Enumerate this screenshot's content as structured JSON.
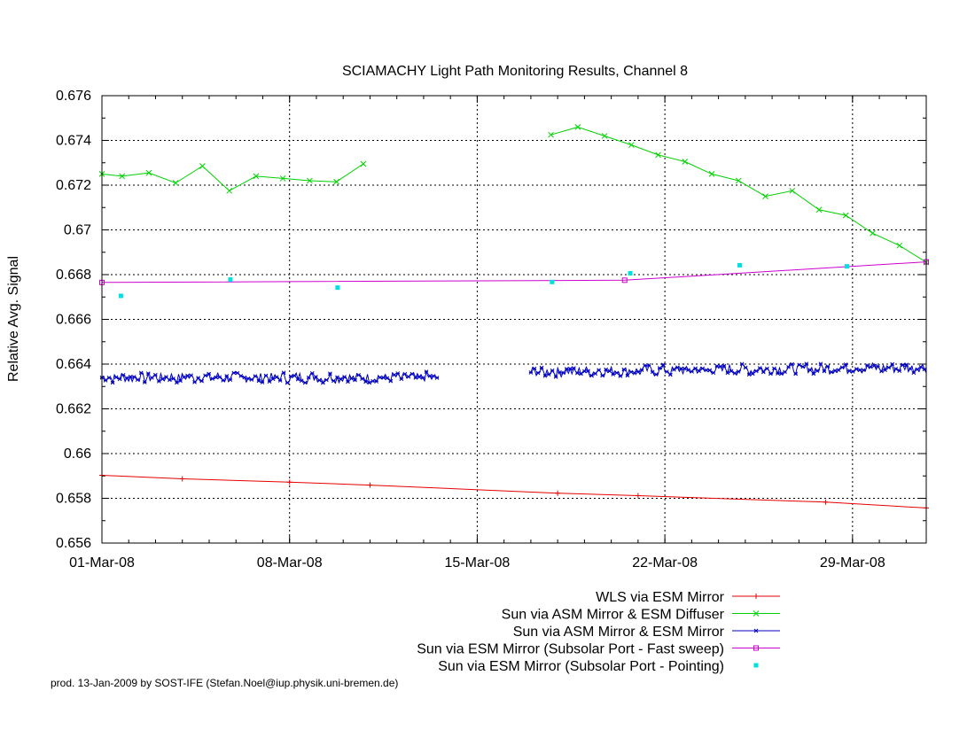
{
  "chart_data": {
    "type": "line",
    "title": "SCIAMACHY Light Path Monitoring Results, Channel 8",
    "ylabel": "Relative Avg. Signal",
    "xlabel": "",
    "xlim": [
      "2008-03-01",
      "2008-03-31T18:00"
    ],
    "ylim": [
      0.656,
      0.676
    ],
    "grid": true,
    "legend_position": "bottom-center",
    "x_ticks": [
      "01-Mar-08",
      "08-Mar-08",
      "15-Mar-08",
      "22-Mar-08",
      "29-Mar-08"
    ],
    "y_ticks": [
      "0.656",
      "0.658",
      "0.66",
      "0.662",
      "0.664",
      "0.666",
      "0.668",
      "0.67",
      "0.672",
      "0.674",
      "0.676"
    ],
    "series": [
      {
        "name": "WLS via ESM Mirror",
        "color": "#e60000",
        "marker": "plus",
        "line": true,
        "points": [
          [
            "2008-03-01",
            0.65903
          ],
          [
            "2008-03-04",
            0.65887
          ],
          [
            "2008-03-08",
            0.65872
          ],
          [
            "2008-03-11",
            0.65859
          ],
          [
            "2008-03-18",
            0.65823
          ],
          [
            "2008-03-21",
            0.65812
          ],
          [
            "2008-03-28",
            0.65783
          ],
          [
            "2008-03-31T18:00",
            0.65757
          ]
        ]
      },
      {
        "name": "Sun via ASM Mirror & ESM Diffuser",
        "color": "#00d200",
        "marker": "x",
        "line": true,
        "points": [
          [
            "2008-03-01",
            0.6725
          ],
          [
            "2008-03-01T18:00",
            0.6724
          ],
          [
            "2008-03-02T18:00",
            0.67255
          ],
          [
            "2008-03-03T18:00",
            0.6721
          ],
          [
            "2008-03-04T18:00",
            0.67285
          ],
          [
            "2008-03-05T18:00",
            0.67175
          ],
          [
            "2008-03-06T18:00",
            0.6724
          ],
          [
            "2008-03-07T18:00",
            0.6723
          ],
          [
            "2008-03-08T18:00",
            0.6722
          ],
          [
            "2008-03-09T18:00",
            0.67215
          ],
          [
            "2008-03-10T18:00",
            0.67295
          ],
          null,
          [
            "2008-03-17T18:00",
            0.67425
          ],
          [
            "2008-03-18T18:00",
            0.6746
          ],
          [
            "2008-03-19T18:00",
            0.6742
          ],
          [
            "2008-03-20T18:00",
            0.6738
          ],
          [
            "2008-03-21T18:00",
            0.67335
          ],
          [
            "2008-03-22T18:00",
            0.67305
          ],
          [
            "2008-03-23T18:00",
            0.6725
          ],
          [
            "2008-03-24T18:00",
            0.6722
          ],
          [
            "2008-03-25T18:00",
            0.6715
          ],
          [
            "2008-03-26T18:00",
            0.67175
          ],
          [
            "2008-03-27T18:00",
            0.6709
          ],
          [
            "2008-03-28T18:00",
            0.67065
          ],
          [
            "2008-03-29T18:00",
            0.66985
          ],
          [
            "2008-03-30T18:00",
            0.6693
          ],
          [
            "2008-03-31T18:00",
            0.66855
          ]
        ]
      },
      {
        "name": "Sun via ASM Mirror & ESM Mirror",
        "color": "#0000c0",
        "marker": "star",
        "line": true,
        "segments": [
          {
            "start": "2008-03-01",
            "end": "2008-03-13T12:00",
            "mean": 0.6634,
            "amplitude": 0.0003,
            "trend": 0.0
          },
          {
            "start": "2008-03-17T00:00",
            "end": "2008-03-31T18:00",
            "mean": 0.66365,
            "amplitude": 0.0003,
            "trend": 0.0002
          }
        ]
      },
      {
        "name": "Sun via ESM Mirror (Subsolar Port - Fast sweep)",
        "color": "#cc00cc",
        "marker": "square",
        "line": true,
        "points": [
          [
            "2008-03-01",
            0.66765
          ],
          [
            "2008-03-20T12:00",
            0.66775
          ],
          [
            "2008-03-31T18:00",
            0.66857
          ]
        ]
      },
      {
        "name": "Sun via ESM Mirror (Subsolar Port - Pointing)",
        "color": "#00e0e0",
        "marker": "dot",
        "line": false,
        "points": [
          [
            "2008-03-01T17:00",
            0.66705
          ],
          [
            "2008-03-05T19:00",
            0.66778
          ],
          [
            "2008-03-09T19:00",
            0.66742
          ],
          [
            "2008-03-17T19:00",
            0.66767
          ],
          [
            "2008-03-20T17:00",
            0.66806
          ],
          [
            "2008-03-24T19:00",
            0.66842
          ],
          [
            "2008-03-28T19:00",
            0.66837
          ]
        ]
      }
    ]
  },
  "footer": "prod. 13-Jan-2009 by SOST-IFE (Stefan.Noel@iup.physik.uni-bremen.de)"
}
